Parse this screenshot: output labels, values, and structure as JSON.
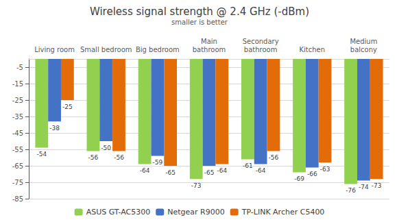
{
  "chart_data": {
    "type": "bar",
    "title": "Wireless signal strength @ 2.4 GHz (-dBm)",
    "subtitle": "smaller is better",
    "categories": [
      "Living room",
      "Small bedroom",
      "Big bedroom",
      "Main\nbathroom",
      "Secondary\nbathroom",
      "Kitchen",
      "Medium\nbalcony"
    ],
    "series": [
      {
        "name": "ASUS GT-AC5300",
        "color": "#92d050",
        "values": [
          -54,
          -56,
          -64,
          -73,
          -61,
          -69,
          -76
        ]
      },
      {
        "name": "Netgear R9000",
        "color": "#4472c4",
        "values": [
          -38,
          -50,
          -59,
          -65,
          -64,
          -66,
          -74
        ]
      },
      {
        "name": "TP-LINK Archer C5400",
        "color": "#e36c09",
        "values": [
          -25,
          -56,
          -65,
          -64,
          -56,
          -63,
          -73
        ]
      }
    ],
    "ylim": [
      -85,
      0
    ],
    "yticks": [
      -85,
      -75,
      -65,
      -55,
      -45,
      -35,
      -25,
      -15,
      -5
    ],
    "grid": true,
    "legend": "bottom",
    "data_labels": true
  }
}
